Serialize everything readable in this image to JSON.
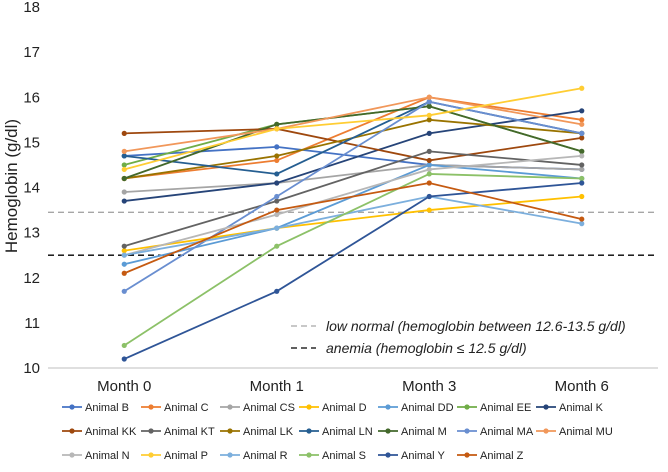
{
  "chart_data": {
    "type": "line",
    "xlabel": "",
    "ylabel": "Hemoglobin (g/dl)",
    "categories": [
      "Month 0",
      "Month 1",
      "Month 3",
      "Month 6"
    ],
    "ylim": [
      10,
      18
    ],
    "yticks": [
      10,
      11,
      12,
      13,
      14,
      15,
      16,
      17,
      18
    ],
    "grid": false,
    "legend": "bottom",
    "reference_lines": [
      {
        "label": "low normal (hemoglobin between 12.6-13.5 g/dl)",
        "y": 13.45,
        "color": "#a6a6a6",
        "style": "dashed"
      },
      {
        "label": "anemia (hemoglobin ≤ 12.5 g/dl)",
        "y": 12.5,
        "color": "#000000",
        "style": "dashed"
      }
    ],
    "series": [
      {
        "name": "Animal B",
        "color": "#4472c4",
        "values": [
          14.7,
          14.9,
          14.5,
          14.4
        ]
      },
      {
        "name": "Animal C",
        "color": "#ed7d31",
        "values": [
          14.2,
          14.6,
          16.0,
          15.5
        ]
      },
      {
        "name": "Animal CS",
        "color": "#a5a5a5",
        "values": [
          13.9,
          14.1,
          14.5,
          14.4
        ]
      },
      {
        "name": "Animal D",
        "color": "#ffc000",
        "values": [
          12.6,
          13.1,
          13.5,
          13.8
        ]
      },
      {
        "name": "Animal DD",
        "color": "#5b9bd5",
        "values": [
          12.3,
          13.1,
          14.5,
          14.2
        ]
      },
      {
        "name": "Animal EE",
        "color": "#70ad47",
        "values": [
          14.5,
          15.4,
          15.8,
          14.8
        ]
      },
      {
        "name": "Animal K",
        "color": "#264478",
        "values": [
          13.7,
          14.1,
          15.2,
          15.7
        ]
      },
      {
        "name": "Animal KK",
        "color": "#9e480e",
        "values": [
          15.2,
          15.3,
          14.6,
          15.1
        ]
      },
      {
        "name": "Animal KT",
        "color": "#636363",
        "values": [
          12.7,
          13.7,
          14.8,
          14.5
        ]
      },
      {
        "name": "Animal LK",
        "color": "#997300",
        "values": [
          14.2,
          14.7,
          15.5,
          15.2
        ]
      },
      {
        "name": "Animal LN",
        "color": "#255e91",
        "values": [
          14.7,
          14.3,
          15.9,
          15.2
        ]
      },
      {
        "name": "Animal M",
        "color": "#43682b",
        "values": [
          14.2,
          15.4,
          15.8,
          14.8
        ]
      },
      {
        "name": "Animal MA",
        "color": "#698ed0",
        "values": [
          11.7,
          13.8,
          15.9,
          15.2
        ]
      },
      {
        "name": "Animal MU",
        "color": "#f1975a",
        "values": [
          14.8,
          15.3,
          16.0,
          15.4
        ]
      },
      {
        "name": "Animal N",
        "color": "#b7b7b7",
        "values": [
          12.5,
          13.4,
          14.4,
          14.7
        ]
      },
      {
        "name": "Animal P",
        "color": "#ffcd33",
        "values": [
          14.4,
          15.3,
          15.6,
          16.2
        ]
      },
      {
        "name": "Animal R",
        "color": "#7cafdd",
        "values": [
          12.5,
          13.1,
          13.8,
          13.2
        ]
      },
      {
        "name": "Animal S",
        "color": "#8cc168",
        "values": [
          10.5,
          12.7,
          14.3,
          14.2
        ]
      },
      {
        "name": "Animal Y",
        "color": "#2f5597",
        "values": [
          10.2,
          11.7,
          13.8,
          14.1
        ]
      },
      {
        "name": "Animal Z",
        "color": "#c55a11",
        "values": [
          12.1,
          13.5,
          14.1,
          13.3
        ]
      }
    ]
  }
}
